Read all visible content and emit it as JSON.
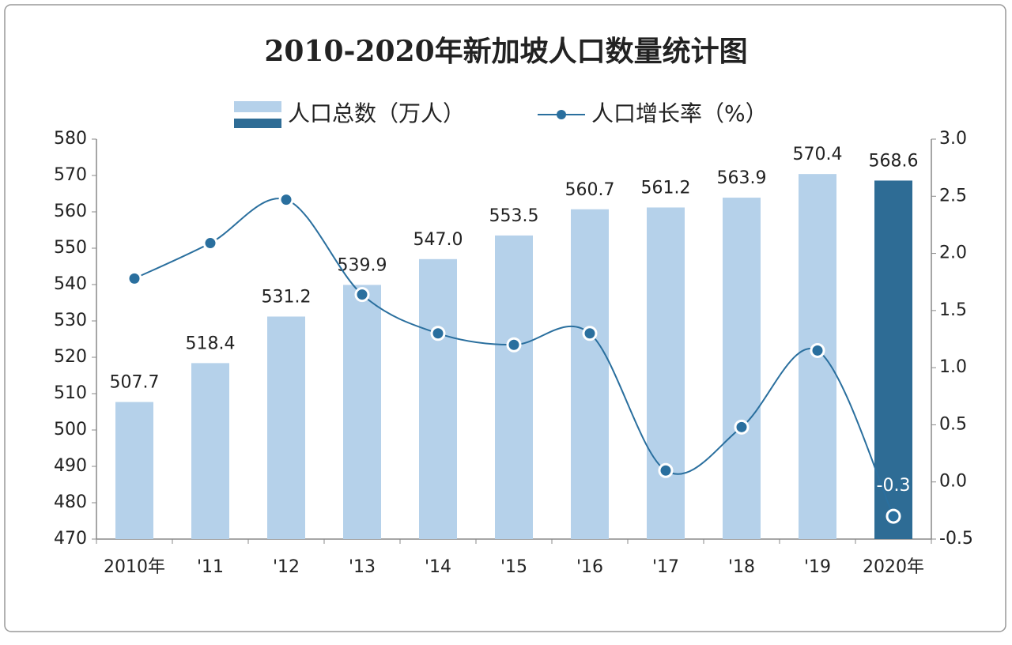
{
  "chart_data": {
    "type": "bar-line",
    "title": "2010-2020年新加坡人口数量统计图",
    "categories": [
      "2010年",
      "'11",
      "'12",
      "'13",
      "'14",
      "'15",
      "'16",
      "'17",
      "'18",
      "'19",
      "2020年"
    ],
    "series": [
      {
        "name": "人口总数（万人）",
        "type": "bar",
        "colors": [
          "#b5d1ea",
          "#b5d1ea",
          "#b5d1ea",
          "#b5d1ea",
          "#b5d1ea",
          "#b5d1ea",
          "#b5d1ea",
          "#b5d1ea",
          "#b5d1ea",
          "#b5d1ea",
          "#2e6c95"
        ],
        "values": [
          507.7,
          518.4,
          531.2,
          539.9,
          547.0,
          553.5,
          560.7,
          561.2,
          563.9,
          570.4,
          568.6
        ],
        "value_labels": [
          "507.7",
          "518.4",
          "531.2",
          "539.9",
          "547.0",
          "553.5",
          "560.7",
          "561.2",
          "563.9",
          "570.4",
          "568.6"
        ]
      },
      {
        "name": "人口增长率（%）",
        "type": "line",
        "axis": "y2",
        "color": "#2a6f9e",
        "values": [
          1.78,
          2.09,
          2.47,
          1.64,
          1.3,
          1.2,
          1.3,
          0.1,
          0.48,
          1.15,
          -0.3
        ],
        "value_labels": [
          null,
          null,
          null,
          null,
          null,
          null,
          null,
          null,
          null,
          null,
          "-0.3"
        ]
      }
    ],
    "ylim": [
      470,
      580
    ],
    "yticks": [
      470,
      480,
      490,
      500,
      510,
      520,
      530,
      540,
      550,
      560,
      570,
      580
    ],
    "y2lim": [
      -0.5,
      3.0
    ],
    "y2ticks": [
      -0.5,
      {
        "value": 0,
        "label": "0.0"
      },
      0.5,
      {
        "value": 1,
        "label": "1.0"
      },
      1.5,
      {
        "value": 2,
        "label": "2.0"
      },
      2.5,
      {
        "value": 3,
        "label": "3.0"
      }
    ],
    "legend": "top",
    "grid": false
  }
}
